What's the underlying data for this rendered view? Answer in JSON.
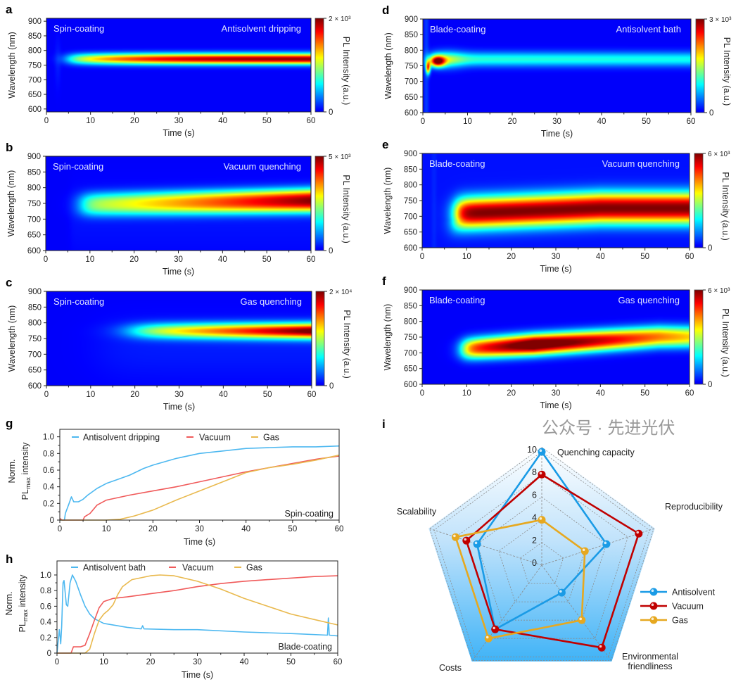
{
  "colors": {
    "antisolvent_line": "#4db8f0",
    "vacuum_line": "#f05a5a",
    "gas_line": "#e9b94e",
    "radar_antisolvent": "#1a9be6",
    "radar_vacuum": "#c00000",
    "radar_gas": "#e6a820",
    "colormap": "jet"
  },
  "heatmaps": [
    {
      "id": "a",
      "letter": "a",
      "left_label": "Spin-coating",
      "right_label": "Antisolvent dripping",
      "xlabel": "Time (s)",
      "ylabel": "Wavelength (nm)",
      "cbar_label": "PL Intensity (a.u.)",
      "cbar_max": "2 × 10³",
      "cbar_min": "0",
      "xticks": [
        "0",
        "10",
        "20",
        "30",
        "40",
        "50",
        "60"
      ],
      "yticks": [
        "600",
        "650",
        "700",
        "750",
        "800",
        "850",
        "900"
      ],
      "xlim": [
        0,
        60
      ],
      "ylim": [
        590,
        910
      ],
      "peak_wavelength_nm": 772
    },
    {
      "id": "b",
      "letter": "b",
      "left_label": "Spin-coating",
      "right_label": "Vacuum quenching",
      "xlabel": "Time (s)",
      "ylabel": "Wavelength (nm)",
      "cbar_label": "PL Intensity (a.u.)",
      "cbar_max": "5 × 10³",
      "cbar_min": "0",
      "xticks": [
        "0",
        "10",
        "20",
        "30",
        "40",
        "50",
        "60"
      ],
      "yticks": [
        "600",
        "650",
        "700",
        "750",
        "800",
        "850",
        "900"
      ],
      "xlim": [
        0,
        60
      ],
      "ylim": [
        600,
        900
      ],
      "peak_wavelength_nm": 760
    },
    {
      "id": "c",
      "letter": "c",
      "left_label": "Spin-coating",
      "right_label": "Gas quenching",
      "xlabel": "Time (s)",
      "ylabel": "Wavelength (nm)",
      "cbar_label": "PL Intensity (a.u.)",
      "cbar_max": "2 × 10⁴",
      "cbar_min": "0",
      "xticks": [
        "0",
        "10",
        "20",
        "30",
        "40",
        "50",
        "60"
      ],
      "yticks": [
        "600",
        "650",
        "700",
        "750",
        "800",
        "850",
        "900"
      ],
      "xlim": [
        0,
        60
      ],
      "ylim": [
        600,
        900
      ],
      "peak_wavelength_nm": 775
    },
    {
      "id": "d",
      "letter": "d",
      "left_label": "Blade-coating",
      "right_label": "Antisolvent bath",
      "xlabel": "Time (s)",
      "ylabel": "Wavelength (nm)",
      "cbar_label": "PL Intensity (a.u.)",
      "cbar_max": "3 × 10³",
      "cbar_min": "0",
      "xticks": [
        "0",
        "10",
        "20",
        "30",
        "40",
        "50",
        "60"
      ],
      "yticks": [
        "600",
        "650",
        "700",
        "750",
        "800",
        "850",
        "900"
      ],
      "xlim": [
        0,
        60
      ],
      "ylim": [
        600,
        900
      ],
      "peak_wavelength_nm": 765
    },
    {
      "id": "e",
      "letter": "e",
      "left_label": "Blade-coating",
      "right_label": "Vacuum quenching",
      "xlabel": "Time (s)",
      "ylabel": "Wavelength (nm)",
      "cbar_label": "PL Intensity (a.u.)",
      "cbar_max": "6 × 10³",
      "cbar_min": "0",
      "xticks": [
        "0",
        "10",
        "20",
        "30",
        "40",
        "50",
        "60"
      ],
      "yticks": [
        "600",
        "650",
        "700",
        "750",
        "800",
        "850",
        "900"
      ],
      "xlim": [
        0,
        60
      ],
      "ylim": [
        600,
        900
      ],
      "peak_wavelength_nm": 720
    },
    {
      "id": "f",
      "letter": "f",
      "left_label": "Blade-coating",
      "right_label": "Gas quenching",
      "xlabel": "Time (s)",
      "ylabel": "Wavelength (nm)",
      "cbar_label": "PL Intensity (a.u.)",
      "cbar_max": "6 × 10³",
      "cbar_min": "0",
      "xticks": [
        "0",
        "10",
        "20",
        "30",
        "40",
        "50",
        "60"
      ],
      "yticks": [
        "600",
        "650",
        "700",
        "750",
        "800",
        "850",
        "900"
      ],
      "xlim": [
        0,
        60
      ],
      "ylim": [
        600,
        900
      ],
      "peak_wavelength_nm": 740
    }
  ],
  "chart_data": [
    {
      "id": "g",
      "letter": "g",
      "type": "line",
      "annotation": "Spin-coating",
      "xlabel": "Time (s)",
      "ylabel": {
        "line1": "Norm.",
        "pl": "PL",
        "sub": "max",
        "rest": " intensity"
      },
      "xlim": [
        0,
        60
      ],
      "ylim": [
        0,
        1.09
      ],
      "xticks": [
        "0",
        "10",
        "20",
        "30",
        "40",
        "50",
        "60"
      ],
      "yticks": [
        "0",
        "0.2",
        "0.4",
        "0.6",
        "0.8",
        "1.0"
      ],
      "legend": "top",
      "series": [
        {
          "name": "Antisolvent dripping",
          "color_key": "antisolvent_line",
          "points": [
            [
              0,
              0
            ],
            [
              1,
              0
            ],
            [
              1.2,
              0.08
            ],
            [
              2,
              0.2
            ],
            [
              2.5,
              0.28
            ],
            [
              3,
              0.22
            ],
            [
              4,
              0.22
            ],
            [
              5,
              0.25
            ],
            [
              6,
              0.3
            ],
            [
              8,
              0.38
            ],
            [
              10,
              0.44
            ],
            [
              12,
              0.48
            ],
            [
              15,
              0.54
            ],
            [
              18,
              0.62
            ],
            [
              20,
              0.66
            ],
            [
              25,
              0.74
            ],
            [
              30,
              0.8
            ],
            [
              35,
              0.83
            ],
            [
              40,
              0.86
            ],
            [
              45,
              0.87
            ],
            [
              50,
              0.88
            ],
            [
              55,
              0.88
            ],
            [
              60,
              0.89
            ]
          ]
        },
        {
          "name": "Vacuum",
          "color_key": "vacuum_line",
          "points": [
            [
              0,
              0.02
            ],
            [
              0.5,
              0
            ],
            [
              5,
              0
            ],
            [
              5.3,
              0.04
            ],
            [
              6.5,
              0.08
            ],
            [
              8,
              0.18
            ],
            [
              10,
              0.24
            ],
            [
              15,
              0.3
            ],
            [
              20,
              0.35
            ],
            [
              25,
              0.4
            ],
            [
              30,
              0.46
            ],
            [
              35,
              0.52
            ],
            [
              40,
              0.58
            ],
            [
              45,
              0.63
            ],
            [
              50,
              0.68
            ],
            [
              55,
              0.73
            ],
            [
              60,
              0.77
            ]
          ]
        },
        {
          "name": "Gas",
          "color_key": "gas_line",
          "points": [
            [
              0,
              0
            ],
            [
              10,
              0
            ],
            [
              13,
              0.01
            ],
            [
              16,
              0.05
            ],
            [
              20,
              0.12
            ],
            [
              25,
              0.24
            ],
            [
              30,
              0.35
            ],
            [
              35,
              0.46
            ],
            [
              40,
              0.57
            ],
            [
              45,
              0.63
            ],
            [
              50,
              0.67
            ],
            [
              55,
              0.72
            ],
            [
              60,
              0.78
            ]
          ]
        }
      ]
    },
    {
      "id": "h",
      "letter": "h",
      "type": "line",
      "annotation": "Blade-coating",
      "xlabel": "Time (s)",
      "ylabel": {
        "line1": "Norm.",
        "pl": "PL",
        "sub": "max",
        "rest": " intensity"
      },
      "xlim": [
        0,
        60
      ],
      "ylim": [
        0,
        1.18
      ],
      "xticks": [
        "0",
        "10",
        "20",
        "30",
        "40",
        "50",
        "60"
      ],
      "yticks": [
        "0",
        "0.2",
        "0.4",
        "0.6",
        "0.8",
        "1.0"
      ],
      "legend": "top",
      "series": [
        {
          "name": "Antisolvent bath",
          "color_key": "antisolvent_line",
          "points": [
            [
              0,
              0
            ],
            [
              0.5,
              0.3
            ],
            [
              0.8,
              0.12
            ],
            [
              1,
              0.35
            ],
            [
              1.3,
              0.9
            ],
            [
              1.5,
              0.93
            ],
            [
              2,
              0.62
            ],
            [
              2.3,
              0.6
            ],
            [
              2.8,
              0.9
            ],
            [
              3.3,
              1.0
            ],
            [
              4,
              0.92
            ],
            [
              5,
              0.75
            ],
            [
              6,
              0.6
            ],
            [
              7,
              0.5
            ],
            [
              8,
              0.44
            ],
            [
              10,
              0.38
            ],
            [
              15,
              0.33
            ],
            [
              18,
              0.31
            ],
            [
              18.3,
              0.35
            ],
            [
              18.6,
              0.31
            ],
            [
              25,
              0.3
            ],
            [
              30,
              0.3
            ],
            [
              40,
              0.27
            ],
            [
              50,
              0.25
            ],
            [
              57.8,
              0.23
            ],
            [
              58,
              0.45
            ],
            [
              58.2,
              0.23
            ],
            [
              60,
              0.22
            ]
          ]
        },
        {
          "name": "Vacuum",
          "color_key": "vacuum_line",
          "points": [
            [
              0,
              0
            ],
            [
              3,
              0
            ],
            [
              3.5,
              0.08
            ],
            [
              5,
              0.08
            ],
            [
              6,
              0.1
            ],
            [
              7,
              0.25
            ],
            [
              8,
              0.42
            ],
            [
              9,
              0.58
            ],
            [
              10,
              0.66
            ],
            [
              12,
              0.7
            ],
            [
              15,
              0.72
            ],
            [
              20,
              0.76
            ],
            [
              25,
              0.8
            ],
            [
              30,
              0.85
            ],
            [
              35,
              0.89
            ],
            [
              40,
              0.92
            ],
            [
              45,
              0.94
            ],
            [
              50,
              0.96
            ],
            [
              55,
              0.98
            ],
            [
              60,
              0.99
            ]
          ]
        },
        {
          "name": "Gas",
          "color_key": "gas_line",
          "points": [
            [
              0,
              0
            ],
            [
              6,
              0
            ],
            [
              7,
              0.05
            ],
            [
              8,
              0.25
            ],
            [
              9,
              0.42
            ],
            [
              10,
              0.5
            ],
            [
              11,
              0.55
            ],
            [
              12,
              0.62
            ],
            [
              13,
              0.75
            ],
            [
              14,
              0.85
            ],
            [
              16,
              0.94
            ],
            [
              20,
              0.99
            ],
            [
              22,
              1.0
            ],
            [
              25,
              0.99
            ],
            [
              30,
              0.92
            ],
            [
              35,
              0.82
            ],
            [
              40,
              0.7
            ],
            [
              45,
              0.6
            ],
            [
              50,
              0.5
            ],
            [
              55,
              0.43
            ],
            [
              60,
              0.36
            ]
          ]
        }
      ]
    },
    {
      "id": "i",
      "letter": "i",
      "type": "radar",
      "axes": [
        "Quenching capacity",
        "Reproducibility",
        "Environmental friendliness",
        "Costs",
        "Scalability"
      ],
      "axis_label_lines": [
        [
          "Quenching capacity"
        ],
        [
          "Reproducibility"
        ],
        [
          "Environmental",
          "friendliness"
        ],
        [
          "Costs"
        ],
        [
          "Scalability"
        ]
      ],
      "scale_ticks": [
        "0",
        "2",
        "4",
        "6",
        "8",
        "10"
      ],
      "range": [
        0,
        10
      ],
      "legend": "right",
      "series": [
        {
          "name": "Antisolvent",
          "color_key": "radar_antisolvent",
          "values": [
            10,
            6,
            3,
            7,
            6
          ]
        },
        {
          "name": "Vacuum",
          "color_key": "radar_vacuum",
          "values": [
            8,
            9,
            9,
            7,
            7
          ]
        },
        {
          "name": "Gas",
          "color_key": "radar_gas",
          "values": [
            4,
            4,
            6,
            8,
            8
          ]
        }
      ]
    }
  ],
  "watermark": "公众号 · 先进光伏"
}
